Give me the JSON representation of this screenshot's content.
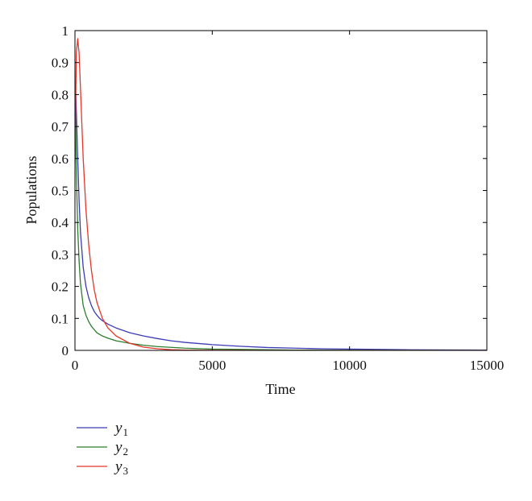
{
  "chart_data": {
    "type": "line",
    "title": "",
    "xlabel": "Time",
    "ylabel": "Populations",
    "xlim": [
      0,
      15000
    ],
    "ylim": [
      0,
      1
    ],
    "xticks": [
      0,
      5000,
      10000,
      15000
    ],
    "yticks": [
      0,
      0.1,
      0.2,
      0.3,
      0.4,
      0.5,
      0.6,
      0.7,
      0.8,
      0.9,
      1
    ],
    "xtick_labels": [
      "0",
      "5000",
      "10000",
      "15000"
    ],
    "ytick_labels": [
      "0",
      "0.1",
      "0.2",
      "0.3",
      "0.4",
      "0.5",
      "0.6",
      "0.7",
      "0.8",
      "0.9",
      "1"
    ],
    "grid": false,
    "legend_position": "below plot, left",
    "series": [
      {
        "name": "y1",
        "symbol": "y",
        "subscript": "1",
        "color": "#3b3bb3",
        "x": [
          0,
          30,
          60,
          100,
          150,
          200,
          300,
          400,
          500,
          600,
          700,
          800,
          900,
          1000,
          1200,
          1500,
          2000,
          2500,
          3000,
          3500,
          4000,
          5000,
          6000,
          7000,
          8000,
          9000,
          10000,
          12000,
          15000
        ],
        "y": [
          0.73,
          0.8,
          0.72,
          0.6,
          0.47,
          0.37,
          0.26,
          0.2,
          0.165,
          0.14,
          0.122,
          0.11,
          0.1,
          0.093,
          0.082,
          0.07,
          0.055,
          0.045,
          0.037,
          0.03,
          0.025,
          0.018,
          0.013,
          0.009,
          0.007,
          0.005,
          0.004,
          0.002,
          0.001
        ]
      },
      {
        "name": "y2",
        "symbol": "y",
        "subscript": "2",
        "color": "#2e7d2e",
        "x": [
          0,
          20,
          50,
          100,
          150,
          200,
          300,
          400,
          500,
          600,
          800,
          1000,
          1200,
          1500,
          2000,
          2500,
          3000,
          4000,
          5000,
          6000,
          8000,
          10000,
          15000
        ],
        "y": [
          0.76,
          0.74,
          0.56,
          0.38,
          0.28,
          0.21,
          0.14,
          0.11,
          0.09,
          0.075,
          0.055,
          0.045,
          0.038,
          0.03,
          0.022,
          0.016,
          0.012,
          0.007,
          0.004,
          0.003,
          0.001,
          0.0005,
          0.0
        ]
      },
      {
        "name": "y3",
        "symbol": "y",
        "subscript": "3",
        "color": "#e8352a",
        "x": [
          0,
          50,
          100,
          150,
          200,
          300,
          400,
          500,
          600,
          700,
          800,
          1000,
          1200,
          1500,
          2000,
          2500,
          3000,
          3500,
          4000,
          5000,
          7000,
          10000,
          15000
        ],
        "y": [
          0.6,
          0.93,
          0.975,
          0.93,
          0.82,
          0.6,
          0.44,
          0.33,
          0.25,
          0.19,
          0.15,
          0.1,
          0.07,
          0.045,
          0.022,
          0.01,
          0.005,
          0.002,
          0.001,
          0.0005,
          0.0,
          0.0,
          0.0
        ]
      }
    ]
  }
}
